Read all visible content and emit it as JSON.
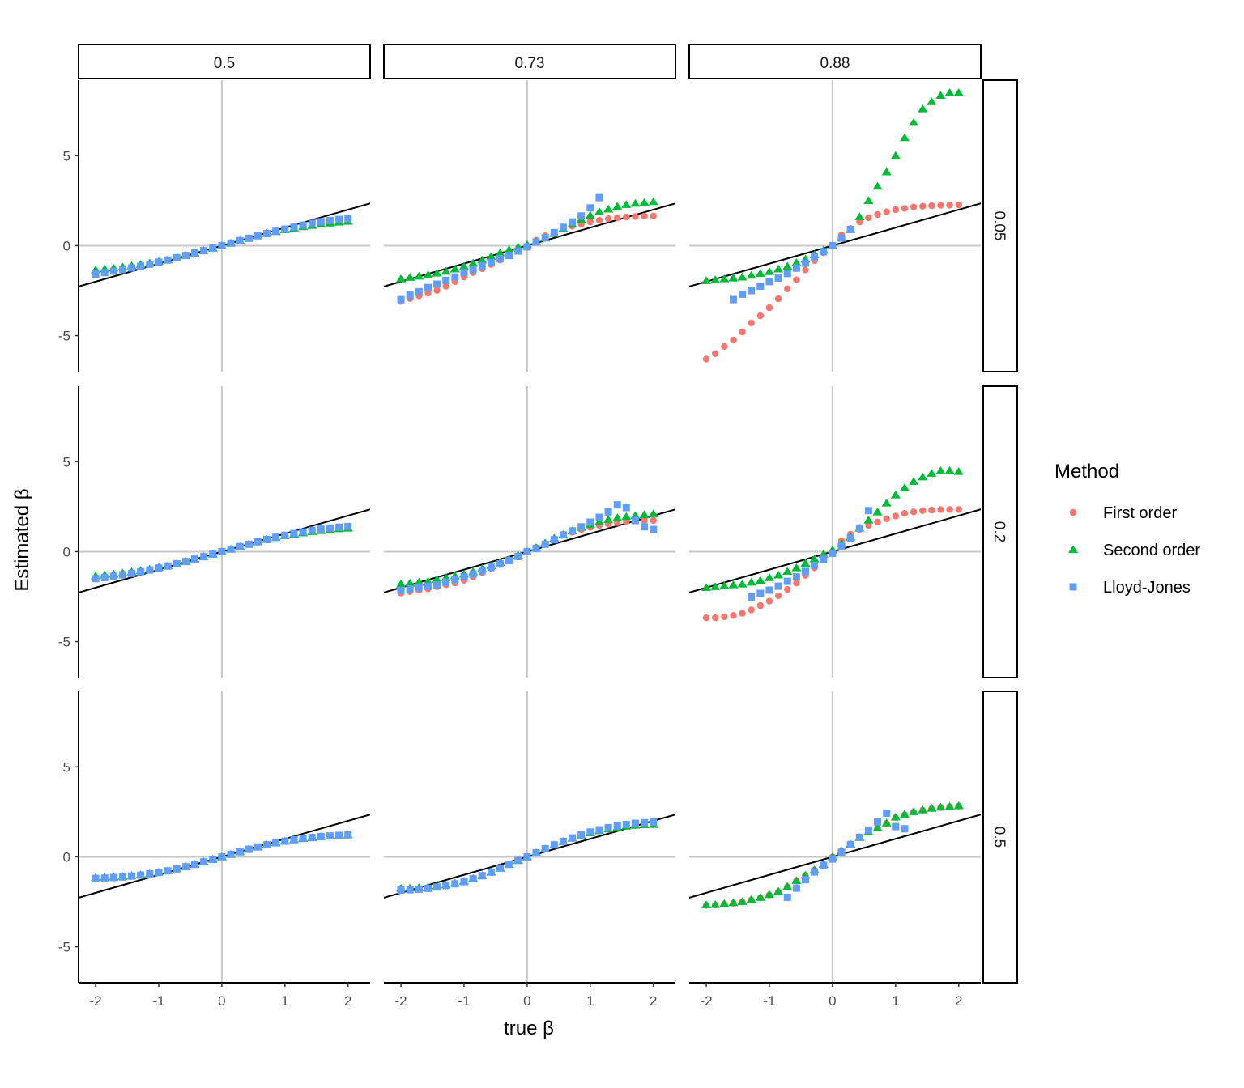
{
  "chart_data": {
    "type": "scatter",
    "layout": "facet grid 3x3",
    "xlabel": "true β",
    "ylabel": "Estimated β",
    "xlim": [
      -2.27,
      2.35
    ],
    "ylim": [
      -7.0,
      9.2
    ],
    "xticks": [
      -2,
      -1,
      0,
      1,
      2
    ],
    "yticks": [
      -5,
      0,
      5
    ],
    "grid": false,
    "reference_lines": {
      "vertical_at_x": 0,
      "horizontal_at_y": 0,
      "identity_line": "y = x"
    },
    "column_strips": [
      "0.5",
      "0.73",
      "0.88"
    ],
    "row_strips": [
      "0.05",
      "0.2",
      "0.5"
    ],
    "legend": {
      "title": "Method",
      "placement": "right",
      "items": [
        {
          "name": "First order",
          "shape": "circle",
          "color": "#F8766D"
        },
        {
          "name": "Second order",
          "shape": "triangle",
          "color": "#00BA38"
        },
        {
          "name": "Lloyd-Jones",
          "shape": "square",
          "color": "#619CFF"
        }
      ]
    },
    "x": [
      -2,
      -1.857,
      -1.714,
      -1.571,
      -1.429,
      -1.286,
      -1.143,
      -1,
      -0.857,
      -0.714,
      -0.571,
      -0.429,
      -0.286,
      -0.143,
      0,
      0.143,
      0.286,
      0.429,
      0.571,
      0.714,
      0.857,
      1,
      1.143,
      1.286,
      1.429,
      1.571,
      1.714,
      1.857,
      2
    ],
    "panels": [
      {
        "column": "0.5",
        "row": "0.05",
        "series": [
          [
            -1.48,
            -1.41,
            -1.34,
            -1.27,
            -1.19,
            -1.1,
            -1.0,
            -0.9,
            -0.79,
            -0.67,
            -0.55,
            -0.41,
            -0.28,
            -0.14,
            0,
            0.14,
            0.28,
            0.41,
            0.55,
            0.67,
            0.79,
            0.9,
            1.0,
            1.1,
            1.19,
            1.26,
            1.32,
            1.37,
            1.41
          ],
          [
            -1.35,
            -1.3,
            -1.25,
            -1.19,
            -1.12,
            -1.05,
            -0.97,
            -0.88,
            -0.78,
            -0.67,
            -0.55,
            -0.41,
            -0.28,
            -0.14,
            0,
            0.14,
            0.28,
            0.41,
            0.55,
            0.67,
            0.78,
            0.88,
            0.97,
            1.05,
            1.12,
            1.19,
            1.25,
            1.3,
            1.35
          ],
          [
            -1.58,
            -1.5,
            -1.42,
            -1.33,
            -1.24,
            -1.14,
            -1.03,
            -0.92,
            -0.8,
            -0.67,
            -0.55,
            -0.41,
            -0.28,
            -0.14,
            0,
            0.14,
            0.28,
            0.41,
            0.55,
            0.67,
            0.8,
            0.92,
            1.03,
            1.14,
            1.24,
            1.33,
            1.4,
            1.46,
            1.5
          ]
        ]
      },
      {
        "column": "0.73",
        "row": "0.05",
        "series": [
          [
            -3.1,
            -2.94,
            -2.79,
            -2.64,
            -2.49,
            -2.26,
            -2.0,
            -1.74,
            -1.5,
            -1.28,
            -1.05,
            -0.8,
            -0.56,
            -0.3,
            0,
            0.3,
            0.55,
            0.75,
            0.98,
            1.08,
            1.2,
            1.32,
            1.41,
            1.5,
            1.55,
            1.59,
            1.62,
            1.64,
            1.65
          ],
          [
            -1.85,
            -1.77,
            -1.7,
            -1.62,
            -1.53,
            -1.43,
            -1.3,
            -1.15,
            -0.98,
            -0.8,
            -0.6,
            -0.4,
            -0.22,
            -0.08,
            0.05,
            0.22,
            0.42,
            0.67,
            0.94,
            1.2,
            1.45,
            1.68,
            1.88,
            2.03,
            2.18,
            2.28,
            2.35,
            2.4,
            2.44
          ],
          [
            -3.0,
            -2.75,
            -2.56,
            -2.33,
            -2.14,
            -1.93,
            -1.74,
            -1.48,
            -1.33,
            -1.12,
            -0.94,
            -0.73,
            -0.55,
            -0.3,
            -0.07,
            0.2,
            0.44,
            0.72,
            1.02,
            1.32,
            1.65,
            2.1,
            2.67,
            null,
            null,
            null,
            null,
            null,
            null
          ]
        ]
      },
      {
        "column": "0.88",
        "row": "0.05",
        "series": [
          [
            -6.3,
            -6.0,
            -5.6,
            -5.25,
            -4.8,
            -4.3,
            -3.9,
            -3.45,
            -2.95,
            -2.4,
            -1.9,
            -1.35,
            -0.83,
            -0.4,
            0,
            0.6,
            0.95,
            1.32,
            1.55,
            1.73,
            1.88,
            2.0,
            2.07,
            2.15,
            2.19,
            2.22,
            2.25,
            2.26,
            2.27
          ],
          [
            -1.95,
            -1.9,
            -1.85,
            -1.8,
            -1.75,
            -1.65,
            -1.55,
            -1.45,
            -1.3,
            -1.15,
            -0.95,
            -0.75,
            -0.5,
            -0.25,
            0,
            0.45,
            0.9,
            1.6,
            2.5,
            3.3,
            4.1,
            5.0,
            6.0,
            6.85,
            7.6,
            8.0,
            8.35,
            8.5,
            8.5
          ],
          [
            null,
            null,
            null,
            -3.0,
            -2.7,
            -2.5,
            -2.25,
            -2.0,
            -1.8,
            -1.55,
            -1.25,
            -0.97,
            -0.63,
            -0.33,
            0,
            0.42,
            0.9,
            null,
            null,
            null,
            null,
            null,
            null,
            null,
            null,
            null,
            null,
            null,
            null
          ]
        ]
      },
      {
        "column": "0.5",
        "row": "0.2",
        "series": [
          [
            -1.46,
            -1.4,
            -1.34,
            -1.27,
            -1.19,
            -1.1,
            -1.0,
            -0.9,
            -0.79,
            -0.67,
            -0.55,
            -0.41,
            -0.28,
            -0.14,
            0,
            0.14,
            0.28,
            0.41,
            0.55,
            0.67,
            0.79,
            0.9,
            1.0,
            1.09,
            1.17,
            1.24,
            1.3,
            1.35,
            1.38
          ],
          [
            -1.35,
            -1.3,
            -1.25,
            -1.19,
            -1.12,
            -1.05,
            -0.97,
            -0.88,
            -0.78,
            -0.67,
            -0.55,
            -0.41,
            -0.28,
            -0.14,
            0,
            0.14,
            0.28,
            0.41,
            0.55,
            0.67,
            0.78,
            0.88,
            0.97,
            1.04,
            1.11,
            1.17,
            1.22,
            1.27,
            1.3
          ],
          [
            -1.5,
            -1.44,
            -1.37,
            -1.29,
            -1.21,
            -1.12,
            -1.02,
            -0.91,
            -0.8,
            -0.68,
            -0.55,
            -0.41,
            -0.28,
            -0.14,
            0,
            0.14,
            0.28,
            0.41,
            0.55,
            0.68,
            0.8,
            0.91,
            1.01,
            1.1,
            1.18,
            1.25,
            1.31,
            1.36,
            1.4
          ]
        ]
      },
      {
        "column": "0.73",
        "row": "0.2",
        "series": [
          [
            -2.3,
            -2.22,
            -2.15,
            -2.07,
            -1.95,
            -1.84,
            -1.74,
            -1.59,
            -1.4,
            -1.17,
            -0.94,
            -0.72,
            -0.5,
            -0.27,
            0,
            0.23,
            0.45,
            0.7,
            0.93,
            1.08,
            1.23,
            1.35,
            1.46,
            1.53,
            1.61,
            1.68,
            1.73,
            1.73,
            1.73
          ],
          [
            -1.8,
            -1.75,
            -1.7,
            -1.65,
            -1.55,
            -1.45,
            -1.35,
            -1.25,
            -1.12,
            -0.95,
            -0.78,
            -0.6,
            -0.42,
            -0.2,
            0,
            0.22,
            0.48,
            0.74,
            0.95,
            1.15,
            1.35,
            1.5,
            1.65,
            1.78,
            1.88,
            1.95,
            2.0,
            2.05,
            2.1
          ],
          [
            -2.15,
            -2.07,
            -2.0,
            -1.92,
            -1.84,
            -1.7,
            -1.55,
            -1.4,
            -1.25,
            -1.07,
            -0.87,
            -0.68,
            -0.5,
            -0.27,
            0,
            0.18,
            0.41,
            0.66,
            0.93,
            1.15,
            1.38,
            1.64,
            1.91,
            2.21,
            2.6,
            2.45,
            1.73,
            1.38,
            1.23
          ]
        ]
      },
      {
        "column": "0.88",
        "row": "0.2",
        "series": [
          [
            -3.68,
            -3.68,
            -3.62,
            -3.55,
            -3.43,
            -3.24,
            -3.0,
            -2.75,
            -2.45,
            -2.1,
            -1.74,
            -1.32,
            -0.9,
            -0.47,
            0,
            0.6,
            0.97,
            1.23,
            1.46,
            1.65,
            1.83,
            1.98,
            2.13,
            2.21,
            2.28,
            2.31,
            2.34,
            2.34,
            2.34
          ],
          [
            -2.0,
            -1.95,
            -1.9,
            -1.85,
            -1.8,
            -1.7,
            -1.6,
            -1.45,
            -1.3,
            -1.1,
            -0.9,
            -0.65,
            -0.4,
            -0.15,
            0.1,
            0.45,
            0.8,
            1.3,
            1.75,
            2.2,
            2.7,
            3.15,
            3.55,
            3.9,
            4.15,
            4.35,
            4.5,
            4.5,
            4.45
          ],
          [
            null,
            null,
            null,
            null,
            null,
            -2.52,
            -2.32,
            -2.14,
            -1.92,
            -1.65,
            -1.4,
            -1.1,
            -0.76,
            -0.42,
            -0.09,
            0.3,
            0.75,
            1.31,
            2.28,
            null,
            null,
            null,
            null,
            null,
            null,
            null,
            null,
            null,
            null
          ]
        ]
      },
      {
        "column": "0.5",
        "row": "0.5",
        "series": [
          [
            -1.22,
            -1.2,
            -1.17,
            -1.13,
            -1.08,
            -1.02,
            -0.95,
            -0.87,
            -0.78,
            -0.67,
            -0.55,
            -0.42,
            -0.28,
            -0.14,
            0,
            0.14,
            0.28,
            0.42,
            0.55,
            0.67,
            0.78,
            0.87,
            0.95,
            1.01,
            1.06,
            1.1,
            1.14,
            1.17,
            1.2
          ],
          [
            -1.15,
            -1.14,
            -1.12,
            -1.09,
            -1.05,
            -1.0,
            -0.94,
            -0.86,
            -0.77,
            -0.67,
            -0.55,
            -0.42,
            -0.28,
            -0.14,
            0,
            0.14,
            0.28,
            0.42,
            0.55,
            0.67,
            0.78,
            0.87,
            0.95,
            1.02,
            1.07,
            1.12,
            1.16,
            1.19,
            1.22
          ],
          [
            -1.2,
            -1.18,
            -1.15,
            -1.12,
            -1.07,
            -1.02,
            -0.95,
            -0.87,
            -0.78,
            -0.67,
            -0.55,
            -0.42,
            -0.28,
            -0.14,
            0,
            0.14,
            0.28,
            0.42,
            0.55,
            0.67,
            0.78,
            0.87,
            0.95,
            1.02,
            1.07,
            1.12,
            1.16,
            1.19,
            1.22
          ]
        ]
      },
      {
        "column": "0.73",
        "row": "0.5",
        "series": [
          [
            -1.82,
            -1.8,
            -1.77,
            -1.72,
            -1.66,
            -1.58,
            -1.48,
            -1.37,
            -1.22,
            -1.05,
            -0.85,
            -0.63,
            -0.42,
            -0.2,
            0,
            0.22,
            0.45,
            0.66,
            0.85,
            1.03,
            1.19,
            1.33,
            1.45,
            1.55,
            1.63,
            1.69,
            1.74,
            1.77,
            1.79
          ],
          [
            -1.75,
            -1.74,
            -1.72,
            -1.68,
            -1.63,
            -1.56,
            -1.47,
            -1.36,
            -1.21,
            -1.04,
            -0.85,
            -0.63,
            -0.42,
            -0.2,
            0,
            0.22,
            0.45,
            0.66,
            0.85,
            1.03,
            1.19,
            1.33,
            1.45,
            1.55,
            1.63,
            1.7,
            1.75,
            1.78,
            1.8
          ],
          [
            -1.85,
            -1.83,
            -1.8,
            -1.75,
            -1.68,
            -1.6,
            -1.5,
            -1.38,
            -1.22,
            -1.05,
            -0.85,
            -0.63,
            -0.42,
            -0.2,
            0,
            0.22,
            0.45,
            0.66,
            0.86,
            1.05,
            1.22,
            1.38,
            1.5,
            1.62,
            1.72,
            1.8,
            1.86,
            1.9,
            1.93
          ]
        ]
      },
      {
        "column": "0.88",
        "row": "0.5",
        "series": [
          [
            -2.7,
            -2.68,
            -2.63,
            -2.58,
            -2.51,
            -2.4,
            -2.28,
            -2.12,
            -1.94,
            -1.67,
            -1.34,
            -1.03,
            -0.73,
            -0.42,
            0,
            0.33,
            0.7,
            1.07,
            1.37,
            1.6,
            1.86,
            2.19,
            2.34,
            2.49,
            2.59,
            2.68,
            2.74,
            2.78,
            2.82
          ],
          [
            -2.67,
            -2.66,
            -2.6,
            -2.55,
            -2.49,
            -2.37,
            -2.26,
            -2.1,
            -1.92,
            -1.65,
            -1.32,
            -1.02,
            -0.72,
            -0.42,
            0,
            0.33,
            0.7,
            1.08,
            1.38,
            1.61,
            1.88,
            2.21,
            2.36,
            2.51,
            2.61,
            2.7,
            2.76,
            2.8,
            2.84
          ],
          [
            null,
            null,
            null,
            null,
            null,
            null,
            null,
            null,
            null,
            -2.25,
            -1.74,
            -1.27,
            -0.84,
            -0.47,
            -0.12,
            0.25,
            0.68,
            1.08,
            1.49,
            1.94,
            2.43,
            1.68,
            1.56,
            null,
            null,
            null,
            null,
            null,
            null
          ]
        ]
      }
    ]
  }
}
